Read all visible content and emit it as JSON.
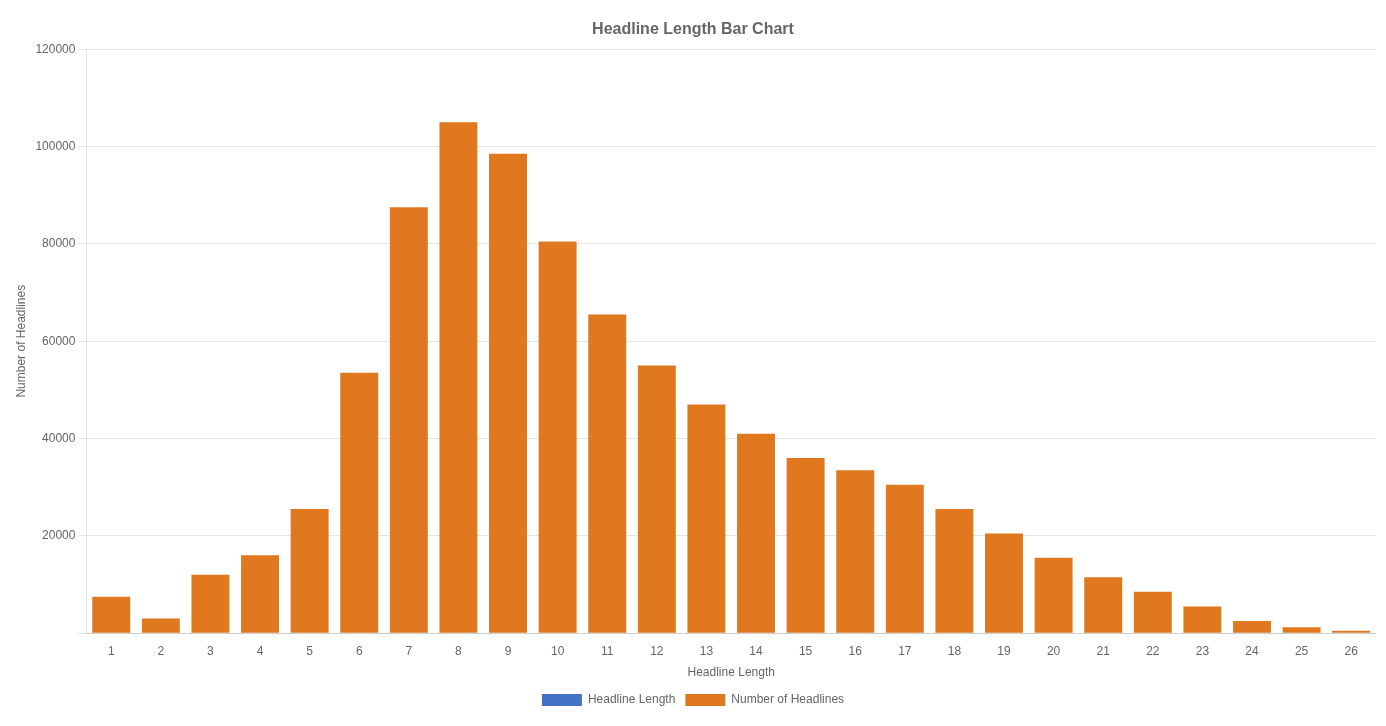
{
  "chart_data": {
    "type": "bar",
    "title": "Headline Length Bar Chart",
    "xlabel": "Headline Length",
    "ylabel": "Number of Headlines",
    "categories": [
      1,
      2,
      3,
      4,
      5,
      6,
      7,
      8,
      9,
      10,
      11,
      12,
      13,
      14,
      15,
      16,
      17,
      18,
      19,
      20,
      21,
      22,
      23,
      24,
      25,
      26
    ],
    "series": [
      {
        "name": "Headline Length",
        "color": "#4472C4",
        "values": [
          null,
          null,
          null,
          null,
          null,
          null,
          null,
          null,
          null,
          null,
          null,
          null,
          null,
          null,
          null,
          null,
          null,
          null,
          null,
          null,
          null,
          null,
          null,
          null,
          null,
          null
        ]
      },
      {
        "name": "Number of Headlines",
        "color": "#E07820",
        "values": [
          7500,
          3000,
          12000,
          16000,
          25500,
          53500,
          87500,
          105000,
          98500,
          80500,
          65500,
          55000,
          47000,
          41000,
          36000,
          33500,
          30500,
          25500,
          20500,
          15500,
          11500,
          8500,
          5500,
          2500,
          1200,
          500
        ]
      }
    ],
    "ylim": [
      0,
      120000
    ],
    "yticks": [
      {
        "value": 0,
        "label": ""
      },
      20000,
      40000,
      60000,
      80000,
      100000,
      120000
    ],
    "grid": "y",
    "legend": "bottom"
  }
}
